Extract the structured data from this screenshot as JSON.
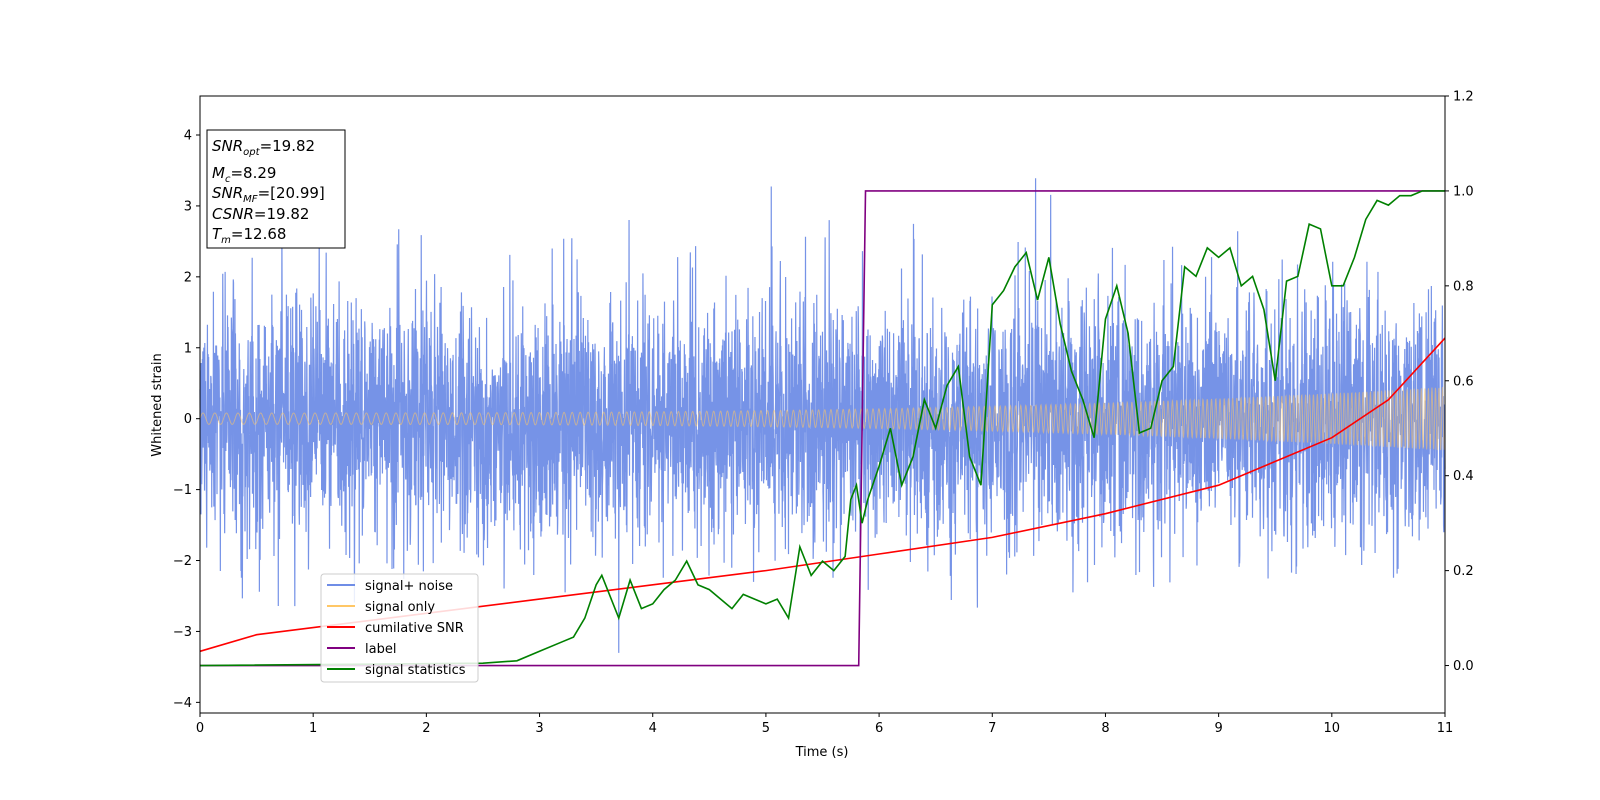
{
  "chart_data": {
    "type": "line",
    "xlabel": "Time (s)",
    "ylabel": "Whitened strain",
    "xlim": [
      0,
      11
    ],
    "ylim_left": [
      -4.15,
      4.55
    ],
    "ylim_right": [
      -0.1,
      1.2
    ],
    "xticks": [
      "0",
      "1",
      "2",
      "3",
      "4",
      "5",
      "6",
      "7",
      "8",
      "9",
      "10",
      "11"
    ],
    "yticks_left": [
      "−4",
      "−3",
      "−2",
      "−1",
      "0",
      "1",
      "2",
      "3",
      "4"
    ],
    "yticks_right": [
      "0.0",
      "0.2",
      "0.4",
      "0.6",
      "0.8",
      "1.0",
      "1.2"
    ],
    "grid": false,
    "legend_position": "lower-left",
    "colors": {
      "signal_noise": "#6f8de6",
      "signal_only": "#ffc766",
      "cumulative_snr": "#ff0000",
      "label": "#800080",
      "signal_statistics": "#008000"
    },
    "info_box": {
      "snr_opt": {
        "sym": "SNR",
        "sub": "opt",
        "value": "=19.82"
      },
      "mc": {
        "sym": "M",
        "sub": "c",
        "value": "=8.29"
      },
      "snr_mf": {
        "sym": "SNR",
        "sub": "MF",
        "value": "=[20.99]"
      },
      "csnr": {
        "sym": "CSNR",
        "value": "=19.82"
      },
      "tm": {
        "sym": "T",
        "sub": "m",
        "value": "=12.68"
      }
    },
    "series": [
      {
        "name": "signal+ noise",
        "axis": "left",
        "kind": "noise",
        "sigma": 0.85,
        "approx_range": [
          -3.7,
          4.2
        ]
      },
      {
        "name": "signal only",
        "axis": "left",
        "kind": "chirp",
        "amplitude_start": 0.08,
        "amplitude_end": 0.45
      },
      {
        "name": "cumilative SNR",
        "axis": "right",
        "x": [
          0,
          0.5,
          1,
          2,
          3,
          4,
          5,
          6,
          7,
          8,
          9,
          10,
          10.5,
          11
        ],
        "values": [
          0.03,
          0.065,
          0.08,
          0.11,
          0.14,
          0.17,
          0.2,
          0.235,
          0.27,
          0.32,
          0.38,
          0.48,
          0.56,
          0.69
        ]
      },
      {
        "name": "label",
        "axis": "right",
        "x": [
          0,
          5.82,
          5.88,
          11
        ],
        "values": [
          0,
          0,
          1,
          1
        ]
      },
      {
        "name": "signal statistics",
        "axis": "right",
        "x": [
          0,
          2.5,
          2.8,
          3.0,
          3.2,
          3.3,
          3.4,
          3.5,
          3.55,
          3.7,
          3.8,
          3.9,
          4.0,
          4.1,
          4.2,
          4.3,
          4.4,
          4.5,
          4.6,
          4.7,
          4.8,
          4.9,
          5.0,
          5.1,
          5.2,
          5.3,
          5.4,
          5.5,
          5.6,
          5.7,
          5.75,
          5.8,
          5.85,
          5.9,
          6.0,
          6.1,
          6.2,
          6.3,
          6.4,
          6.5,
          6.6,
          6.7,
          6.8,
          6.9,
          7.0,
          7.1,
          7.2,
          7.3,
          7.4,
          7.5,
          7.6,
          7.7,
          7.8,
          7.9,
          8.0,
          8.1,
          8.2,
          8.3,
          8.4,
          8.5,
          8.6,
          8.7,
          8.8,
          8.9,
          9.0,
          9.1,
          9.2,
          9.3,
          9.4,
          9.5,
          9.6,
          9.7,
          9.8,
          9.9,
          10.0,
          10.1,
          10.2,
          10.3,
          10.4,
          10.5,
          10.6,
          10.7,
          10.8,
          11.0
        ],
        "values": [
          0,
          0.005,
          0.01,
          0.03,
          0.05,
          0.06,
          0.1,
          0.17,
          0.19,
          0.1,
          0.18,
          0.12,
          0.13,
          0.16,
          0.18,
          0.22,
          0.17,
          0.16,
          0.14,
          0.12,
          0.15,
          0.14,
          0.13,
          0.14,
          0.1,
          0.25,
          0.19,
          0.22,
          0.2,
          0.23,
          0.35,
          0.38,
          0.3,
          0.35,
          0.42,
          0.5,
          0.38,
          0.44,
          0.56,
          0.5,
          0.59,
          0.63,
          0.44,
          0.38,
          0.76,
          0.79,
          0.84,
          0.87,
          0.77,
          0.86,
          0.72,
          0.62,
          0.56,
          0.48,
          0.73,
          0.8,
          0.7,
          0.49,
          0.5,
          0.6,
          0.63,
          0.84,
          0.82,
          0.88,
          0.86,
          0.88,
          0.8,
          0.82,
          0.75,
          0.6,
          0.81,
          0.82,
          0.93,
          0.92,
          0.8,
          0.8,
          0.86,
          0.94,
          0.98,
          0.97,
          0.99,
          0.99,
          1.0,
          1.0
        ]
      }
    ]
  }
}
